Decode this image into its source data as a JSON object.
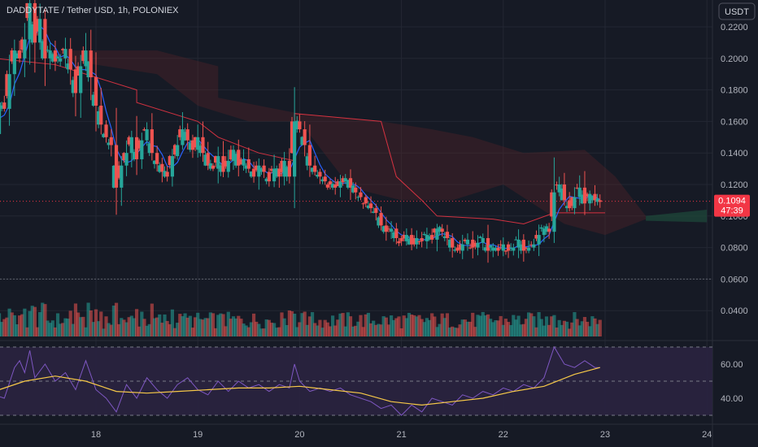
{
  "symbol_title": "DADDYTATE / Tether USD, 1h, POLONIEX",
  "currency_button": "USDT",
  "colors": {
    "background": "#161a25",
    "bull": "#26a69a",
    "bear": "#ef5350",
    "rsi_line": "#7e57c2",
    "rsi_ma": "#f7c948",
    "ichimoku_red": "#f23645",
    "ichimoku_blue": "#2962ff",
    "price_badge": "#f23645",
    "cloud_bear": "#5d2528",
    "cloud_bull": "#1e4a3a"
  },
  "chart_data": [
    {
      "type": "candlestick",
      "title": "",
      "x_ticks": [
        "18",
        "19",
        "20",
        "21",
        "22",
        "23",
        "24"
      ],
      "y_ticks": [
        "0.2200",
        "0.2000",
        "0.1800",
        "0.1600",
        "0.1400",
        "0.1200",
        "0.1000",
        "0.0800",
        "0.0600",
        "0.0400"
      ],
      "ylim": [
        0.03,
        0.23
      ],
      "last_price": "0.1094",
      "countdown": "47:39",
      "price_path": [
        [
          17.0,
          0.152
        ],
        [
          17.05,
          0.172
        ],
        [
          17.1,
          0.168
        ],
        [
          17.15,
          0.19
        ],
        [
          17.2,
          0.205
        ],
        [
          17.25,
          0.2
        ],
        [
          17.3,
          0.212
        ],
        [
          17.35,
          0.235
        ],
        [
          17.4,
          0.21
        ],
        [
          17.45,
          0.225
        ],
        [
          17.5,
          0.2
        ],
        [
          17.55,
          0.205
        ],
        [
          17.6,
          0.198
        ],
        [
          17.65,
          0.2
        ],
        [
          17.7,
          0.206
        ],
        [
          17.75,
          0.193
        ],
        [
          17.8,
          0.178
        ],
        [
          17.85,
          0.195
        ],
        [
          17.9,
          0.205
        ],
        [
          17.95,
          0.188
        ],
        [
          18.0,
          0.17
        ],
        [
          18.05,
          0.158
        ],
        [
          18.1,
          0.15
        ],
        [
          18.15,
          0.145
        ],
        [
          18.2,
          0.118
        ],
        [
          18.25,
          0.132
        ],
        [
          18.3,
          0.14
        ],
        [
          18.35,
          0.15
        ],
        [
          18.4,
          0.136
        ],
        [
          18.45,
          0.148
        ],
        [
          18.5,
          0.155
        ],
        [
          18.55,
          0.14
        ],
        [
          18.6,
          0.133
        ],
        [
          18.65,
          0.128
        ],
        [
          18.7,
          0.125
        ],
        [
          18.75,
          0.138
        ],
        [
          18.8,
          0.145
        ],
        [
          18.85,
          0.155
        ],
        [
          18.9,
          0.148
        ],
        [
          18.95,
          0.142
        ],
        [
          19.0,
          0.15
        ],
        [
          19.05,
          0.14
        ],
        [
          19.1,
          0.132
        ],
        [
          19.15,
          0.13
        ],
        [
          19.2,
          0.138
        ],
        [
          19.25,
          0.128
        ],
        [
          19.3,
          0.135
        ],
        [
          19.35,
          0.142
        ],
        [
          19.4,
          0.132
        ],
        [
          19.45,
          0.136
        ],
        [
          19.5,
          0.13
        ],
        [
          19.55,
          0.125
        ],
        [
          19.6,
          0.132
        ],
        [
          19.65,
          0.128
        ],
        [
          19.7,
          0.122
        ],
        [
          19.75,
          0.13
        ],
        [
          19.8,
          0.125
        ],
        [
          19.85,
          0.135
        ],
        [
          19.9,
          0.125
        ],
        [
          19.95,
          0.16
        ],
        [
          20.0,
          0.155
        ],
        [
          20.05,
          0.145
        ],
        [
          20.1,
          0.132
        ],
        [
          20.15,
          0.128
        ],
        [
          20.2,
          0.125
        ],
        [
          20.25,
          0.122
        ],
        [
          20.3,
          0.12
        ],
        [
          20.35,
          0.118
        ],
        [
          20.4,
          0.122
        ],
        [
          20.45,
          0.124
        ],
        [
          20.5,
          0.118
        ],
        [
          20.55,
          0.115
        ],
        [
          20.6,
          0.112
        ],
        [
          20.65,
          0.108
        ],
        [
          20.7,
          0.105
        ],
        [
          20.75,
          0.102
        ],
        [
          20.8,
          0.094
        ],
        [
          20.85,
          0.09
        ],
        [
          20.9,
          0.092
        ],
        [
          20.95,
          0.086
        ],
        [
          21.0,
          0.084
        ],
        [
          21.05,
          0.088
        ],
        [
          21.1,
          0.082
        ],
        [
          21.15,
          0.086
        ],
        [
          21.2,
          0.084
        ],
        [
          21.25,
          0.088
        ],
        [
          21.3,
          0.085
        ],
        [
          21.35,
          0.092
        ],
        [
          21.4,
          0.09
        ],
        [
          21.45,
          0.086
        ],
        [
          21.5,
          0.08
        ],
        [
          21.55,
          0.078
        ],
        [
          21.6,
          0.082
        ],
        [
          21.65,
          0.085
        ],
        [
          21.7,
          0.08
        ],
        [
          21.75,
          0.083
        ],
        [
          21.8,
          0.086
        ],
        [
          21.85,
          0.078
        ],
        [
          21.9,
          0.08
        ],
        [
          21.95,
          0.078
        ],
        [
          22.0,
          0.082
        ],
        [
          22.05,
          0.078
        ],
        [
          22.1,
          0.08
        ],
        [
          22.15,
          0.085
        ],
        [
          22.2,
          0.078
        ],
        [
          22.25,
          0.08
        ],
        [
          22.3,
          0.082
        ],
        [
          22.35,
          0.088
        ],
        [
          22.4,
          0.092
        ],
        [
          22.45,
          0.09
        ],
        [
          22.5,
          0.115
        ],
        [
          22.55,
          0.12
        ],
        [
          22.6,
          0.11
        ],
        [
          22.65,
          0.105
        ],
        [
          22.7,
          0.112
        ],
        [
          22.75,
          0.118
        ],
        [
          22.8,
          0.108
        ],
        [
          22.85,
          0.114
        ],
        [
          22.9,
          0.11
        ],
        [
          22.95,
          0.109
        ]
      ],
      "series": [
        {
          "name": "Ichimoku"
        },
        {
          "name": "Volume"
        }
      ]
    },
    {
      "type": "line",
      "title": "",
      "y_ticks": [
        "60.00",
        "40.00"
      ],
      "ylim": [
        29,
        71
      ],
      "bands": [
        70,
        50,
        30
      ],
      "rsi": [
        [
          17.0,
          42
        ],
        [
          17.1,
          40
        ],
        [
          17.2,
          58
        ],
        [
          17.25,
          62
        ],
        [
          17.3,
          55
        ],
        [
          17.35,
          68
        ],
        [
          17.4,
          52
        ],
        [
          17.5,
          60
        ],
        [
          17.6,
          50
        ],
        [
          17.7,
          55
        ],
        [
          17.8,
          45
        ],
        [
          17.9,
          62
        ],
        [
          18.0,
          45
        ],
        [
          18.1,
          40
        ],
        [
          18.2,
          32
        ],
        [
          18.3,
          48
        ],
        [
          18.4,
          40
        ],
        [
          18.5,
          52
        ],
        [
          18.6,
          45
        ],
        [
          18.7,
          40
        ],
        [
          18.8,
          48
        ],
        [
          18.9,
          52
        ],
        [
          19.0,
          45
        ],
        [
          19.1,
          42
        ],
        [
          19.2,
          50
        ],
        [
          19.3,
          44
        ],
        [
          19.4,
          50
        ],
        [
          19.5,
          46
        ],
        [
          19.6,
          48
        ],
        [
          19.7,
          44
        ],
        [
          19.8,
          48
        ],
        [
          19.9,
          46
        ],
        [
          19.95,
          60
        ],
        [
          20.0,
          50
        ],
        [
          20.1,
          44
        ],
        [
          20.2,
          46
        ],
        [
          20.3,
          44
        ],
        [
          20.4,
          46
        ],
        [
          20.5,
          42
        ],
        [
          20.6,
          40
        ],
        [
          20.7,
          38
        ],
        [
          20.8,
          34
        ],
        [
          20.9,
          36
        ],
        [
          21.0,
          30
        ],
        [
          21.1,
          36
        ],
        [
          21.2,
          32
        ],
        [
          21.3,
          40
        ],
        [
          21.4,
          38
        ],
        [
          21.5,
          36
        ],
        [
          21.6,
          42
        ],
        [
          21.7,
          40
        ],
        [
          21.8,
          44
        ],
        [
          21.9,
          42
        ],
        [
          22.0,
          46
        ],
        [
          22.1,
          44
        ],
        [
          22.2,
          48
        ],
        [
          22.3,
          46
        ],
        [
          22.4,
          52
        ],
        [
          22.5,
          70
        ],
        [
          22.6,
          60
        ],
        [
          22.7,
          58
        ],
        [
          22.8,
          62
        ],
        [
          22.9,
          58
        ],
        [
          22.95,
          58
        ]
      ],
      "rsi_ma": [
        [
          17.0,
          44
        ],
        [
          17.3,
          50
        ],
        [
          17.6,
          53
        ],
        [
          17.9,
          50
        ],
        [
          18.2,
          44
        ],
        [
          18.5,
          43
        ],
        [
          18.8,
          44
        ],
        [
          19.1,
          45
        ],
        [
          19.4,
          46
        ],
        [
          19.7,
          46
        ],
        [
          20.0,
          47
        ],
        [
          20.3,
          45
        ],
        [
          20.6,
          43
        ],
        [
          20.9,
          38
        ],
        [
          21.2,
          36
        ],
        [
          21.5,
          38
        ],
        [
          21.8,
          40
        ],
        [
          22.1,
          44
        ],
        [
          22.4,
          47
        ],
        [
          22.7,
          54
        ],
        [
          22.95,
          58
        ]
      ]
    }
  ]
}
